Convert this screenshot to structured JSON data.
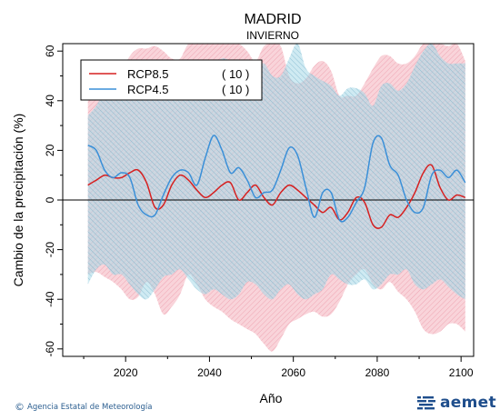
{
  "chart_data": {
    "type": "line",
    "title": "MADRID",
    "subtitle": "INVIERNO",
    "xlabel": "Año",
    "ylabel": "Cambio de la precipitación (%)",
    "xlim": [
      2005,
      2103
    ],
    "ylim": [
      -63,
      63
    ],
    "x_ticks": [
      2020,
      2040,
      2060,
      2080,
      2100
    ],
    "y_ticks": [
      -60,
      -40,
      -20,
      0,
      20,
      40,
      60
    ],
    "reference_line": 0,
    "series": [
      {
        "name": "RCP8.5",
        "count_label": "( 10 )",
        "color": "#d62020",
        "band_color": "#f4b0bc",
        "x": [
          2011,
          2013,
          2015,
          2017,
          2019,
          2021,
          2023,
          2025,
          2027,
          2029,
          2031,
          2033,
          2035,
          2037,
          2039,
          2041,
          2043,
          2045,
          2047,
          2049,
          2051,
          2053,
          2055,
          2057,
          2059,
          2061,
          2063,
          2065,
          2067,
          2069,
          2071,
          2073,
          2075,
          2077,
          2079,
          2081,
          2083,
          2085,
          2087,
          2089,
          2091,
          2093,
          2095,
          2097,
          2099,
          2101
        ],
        "values": [
          6,
          8,
          10,
          9,
          9,
          11,
          12,
          7,
          -3,
          -2,
          6,
          10,
          8,
          4,
          1,
          3,
          6,
          7,
          0,
          3,
          6,
          1,
          -2,
          3,
          6,
          4,
          1,
          -2,
          -5,
          -3,
          -8,
          -5,
          1,
          -1,
          -10,
          -11,
          -6,
          -7,
          -3,
          3,
          11,
          14,
          5,
          0,
          2,
          1
        ],
        "upper": [
          40,
          43,
          47,
          46,
          52,
          58,
          61,
          61,
          62,
          60,
          57,
          57,
          63,
          63,
          63,
          63,
          63,
          63,
          63,
          60,
          56,
          62,
          63,
          62,
          50,
          47,
          49,
          54,
          56,
          52,
          42,
          42,
          42,
          47,
          53,
          58,
          58,
          55,
          55,
          58,
          63,
          63,
          63,
          62,
          63,
          56
        ],
        "lower": [
          -30,
          -29,
          -31,
          -33,
          -36,
          -40,
          -39,
          -33,
          -38,
          -46,
          -43,
          -38,
          -30,
          -34,
          -40,
          -43,
          -45,
          -48,
          -50,
          -52,
          -54,
          -58,
          -61,
          -56,
          -50,
          -48,
          -46,
          -45,
          -47,
          -46,
          -41,
          -34,
          -30,
          -28,
          -34,
          -36,
          -33,
          -37,
          -40,
          -45,
          -52,
          -54,
          -53,
          -50,
          -50,
          -53
        ]
      },
      {
        "name": "RCP4.5",
        "count_label": "( 10 )",
        "color": "#3a8fd8",
        "band_color": "#a8d8e8",
        "x": [
          2011,
          2013,
          2015,
          2017,
          2019,
          2021,
          2023,
          2025,
          2027,
          2029,
          2031,
          2033,
          2035,
          2037,
          2039,
          2041,
          2043,
          2045,
          2047,
          2049,
          2051,
          2053,
          2055,
          2057,
          2059,
          2061,
          2063,
          2065,
          2067,
          2069,
          2071,
          2073,
          2075,
          2077,
          2079,
          2081,
          2083,
          2085,
          2087,
          2089,
          2091,
          2093,
          2095,
          2097,
          2099,
          2101
        ],
        "values": [
          22,
          20,
          12,
          9,
          11,
          9,
          -2,
          -6,
          -6,
          2,
          9,
          12,
          11,
          6,
          17,
          26,
          20,
          11,
          13,
          8,
          1,
          3,
          4,
          12,
          21,
          18,
          5,
          -7,
          3,
          3,
          -8,
          -7,
          -1,
          5,
          23,
          25,
          14,
          10,
          0,
          -5,
          -3,
          10,
          12,
          9,
          12,
          7
        ],
        "upper": [
          34,
          38,
          45,
          52,
          50,
          45,
          42,
          48,
          48,
          50,
          52,
          55,
          52,
          54,
          50,
          55,
          57,
          56,
          52,
          50,
          53,
          55,
          50,
          50,
          57,
          63,
          53,
          50,
          48,
          46,
          42,
          45,
          45,
          43,
          38,
          46,
          47,
          44,
          47,
          54,
          60,
          63,
          58,
          55,
          55,
          55
        ],
        "lower": [
          -34,
          -28,
          -26,
          -30,
          -30,
          -34,
          -38,
          -40,
          -36,
          -31,
          -30,
          -28,
          -32,
          -36,
          -38,
          -36,
          -38,
          -40,
          -38,
          -33,
          -34,
          -38,
          -40,
          -36,
          -34,
          -38,
          -40,
          -38,
          -36,
          -30,
          -32,
          -34,
          -34,
          -32,
          -36,
          -34,
          -30,
          -30,
          -28,
          -34,
          -36,
          -34,
          -32,
          -35,
          -38,
          -40
        ]
      }
    ]
  },
  "footer": {
    "credit_symbol": "©",
    "credit": "Agencia Estatal de Meteorología",
    "brand": "aemet"
  }
}
